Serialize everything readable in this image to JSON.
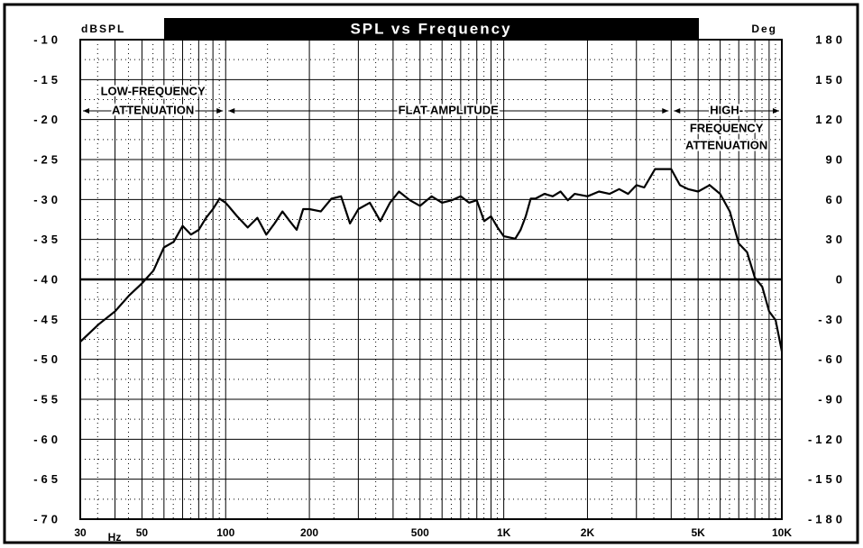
{
  "chart_data": {
    "type": "line",
    "title": "SPL vs Frequency",
    "y_label": "dBSPL",
    "y2_label": "Deg",
    "x_label": "Hz",
    "xscale": "log",
    "xlim": [
      30,
      10000
    ],
    "xticks": [
      30,
      50,
      100,
      200,
      500,
      {
        "value": 1000,
        "label": "1K"
      },
      {
        "value": 2000,
        "label": "2K"
      },
      {
        "value": 5000,
        "label": "5K"
      },
      {
        "value": 10000,
        "label": "10K"
      }
    ],
    "xgrid": [
      40,
      60,
      70,
      80,
      90,
      300,
      400,
      600,
      700,
      800,
      900,
      3000,
      4000,
      6000,
      7000,
      8000,
      9000
    ],
    "ylim": [
      -70,
      -10
    ],
    "yticks": [
      -10,
      -15,
      -20,
      -25,
      -30,
      -35,
      -40,
      -45,
      -50,
      -55,
      -60,
      -65,
      -70
    ],
    "y2lim": [
      -180,
      180
    ],
    "y2ticks": [
      180,
      150,
      120,
      90,
      60,
      30,
      0,
      -30,
      -60,
      -90,
      -120,
      -150,
      -180
    ],
    "grid": true,
    "reference_line": -40,
    "color": "#000000",
    "annotations": [
      {
        "lines": [
          "LOW-FREQUENCY",
          "ATTENUATION"
        ],
        "range": [
          30,
          100
        ]
      },
      {
        "lines": [
          "FLAT AMPLITUDE"
        ],
        "range": [
          100,
          4000
        ]
      },
      {
        "lines": [
          "HIGH-",
          "FREQUENCY",
          "ATTENUATION"
        ],
        "range": [
          4000,
          10000
        ]
      }
    ],
    "x": [
      30,
      35,
      40,
      45,
      50,
      55,
      60,
      65,
      70,
      75,
      80,
      85,
      90,
      95,
      100,
      110,
      120,
      130,
      140,
      150,
      160,
      170,
      180,
      190,
      200,
      220,
      240,
      260,
      280,
      300,
      330,
      360,
      390,
      420,
      460,
      500,
      550,
      600,
      650,
      700,
      750,
      800,
      850,
      900,
      950,
      1000,
      1100,
      1150,
      1200,
      1250,
      1300,
      1400,
      1500,
      1600,
      1700,
      1800,
      2000,
      2200,
      2400,
      2600,
      2800,
      3000,
      3200,
      3500,
      4000,
      4300,
      4600,
      5000,
      5500,
      6000,
      6500,
      7000,
      7500,
      8000,
      8500,
      9000,
      9500,
      10000
    ],
    "values": [
      -47.8,
      -45.6,
      -44,
      -42,
      -40.5,
      -38.9,
      -36,
      -35.3,
      -33.3,
      -34.4,
      -33.8,
      -32.3,
      -31.2,
      -29.9,
      -30.4,
      -32.1,
      -33.5,
      -32.3,
      -34.4,
      -33,
      -31.5,
      -32.7,
      -33.8,
      -31.2,
      -31.2,
      -31.5,
      -29.9,
      -29.6,
      -33,
      -31.2,
      -30.4,
      -32.7,
      -30.4,
      -29,
      -30.1,
      -30.8,
      -29.6,
      -30.4,
      -30.1,
      -29.6,
      -30.4,
      -30.1,
      -32.7,
      -32.1,
      -33.5,
      -34.6,
      -34.9,
      -33.8,
      -32.1,
      -29.9,
      -29.9,
      -29.3,
      -29.6,
      -29,
      -30.1,
      -29.3,
      -29.6,
      -29,
      -29.3,
      -28.7,
      -29.3,
      -28.2,
      -28.5,
      -26.2,
      -26.2,
      -28.2,
      -28.7,
      -29,
      -28.2,
      -29.3,
      -31.5,
      -35.5,
      -36.6,
      -39.8,
      -40.9,
      -44,
      -45.1,
      -49
    ]
  }
}
